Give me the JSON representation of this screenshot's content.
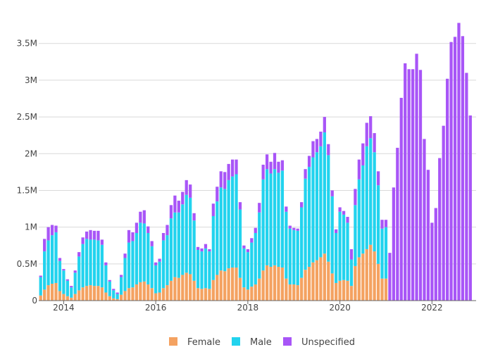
{
  "chart_data": {
    "type": "bar",
    "stacked": true,
    "title": "",
    "xlabel": "",
    "ylabel": "",
    "ylim": [
      0,
      3900000
    ],
    "y_ticks": [
      0,
      500000,
      1000000,
      1500000,
      2000000,
      2500000,
      3000000,
      3500000
    ],
    "y_tick_labels": [
      "0",
      "0.5M",
      "1M",
      "1.5M",
      "2M",
      "2.5M",
      "3M",
      "3.5M"
    ],
    "x_tick_labels": [
      "2014",
      "2016",
      "2018",
      "2020",
      "2022"
    ],
    "x_tick_index": [
      6,
      30,
      54,
      78,
      102
    ],
    "grid": true,
    "legend_position": "bottom-center",
    "series": [
      {
        "name": "Female",
        "color": "#f4a261",
        "values": [
          70000,
          150000,
          210000,
          230000,
          240000,
          130000,
          90000,
          60000,
          40000,
          90000,
          140000,
          180000,
          200000,
          210000,
          200000,
          200000,
          180000,
          110000,
          60000,
          30000,
          20000,
          80000,
          130000,
          170000,
          180000,
          220000,
          250000,
          260000,
          220000,
          170000,
          100000,
          110000,
          170000,
          210000,
          270000,
          320000,
          310000,
          350000,
          380000,
          360000,
          270000,
          170000,
          160000,
          170000,
          160000,
          280000,
          350000,
          410000,
          400000,
          440000,
          450000,
          450000,
          310000,
          180000,
          150000,
          190000,
          220000,
          300000,
          410000,
          480000,
          460000,
          480000,
          460000,
          450000,
          300000,
          220000,
          220000,
          210000,
          310000,
          420000,
          460000,
          520000,
          550000,
          590000,
          640000,
          530000,
          370000,
          240000,
          270000,
          280000,
          270000,
          200000,
          470000,
          590000,
          640000,
          700000,
          760000,
          670000,
          500000,
          300000,
          300000,
          0,
          0,
          0,
          0,
          0,
          0,
          0,
          0,
          0,
          0,
          0,
          0,
          0,
          0,
          0,
          0,
          0,
          0,
          0,
          0,
          0,
          0,
          0
        ]
      },
      {
        "name": "Male",
        "color": "#22d3ee",
        "values": [
          250000,
          520000,
          610000,
          660000,
          690000,
          410000,
          320000,
          210000,
          140000,
          290000,
          460000,
          590000,
          640000,
          620000,
          630000,
          620000,
          580000,
          370000,
          200000,
          110000,
          70000,
          240000,
          450000,
          620000,
          630000,
          700000,
          810000,
          790000,
          700000,
          570000,
          380000,
          420000,
          650000,
          680000,
          850000,
          880000,
          890000,
          960000,
          1060000,
          1040000,
          820000,
          520000,
          510000,
          540000,
          510000,
          870000,
          1000000,
          1130000,
          1120000,
          1200000,
          1240000,
          1270000,
          930000,
          530000,
          510000,
          600000,
          700000,
          900000,
          1240000,
          1310000,
          1270000,
          1310000,
          1280000,
          1320000,
          910000,
          760000,
          740000,
          740000,
          960000,
          1240000,
          1360000,
          1430000,
          1470000,
          1510000,
          1650000,
          1450000,
          1050000,
          680000,
          940000,
          890000,
          790000,
          360000,
          830000,
          1060000,
          1200000,
          1400000,
          1450000,
          1350000,
          1070000,
          680000,
          700000,
          0,
          0,
          0,
          0,
          0,
          0,
          0,
          0,
          0,
          0,
          0,
          0,
          0,
          0,
          0,
          0,
          0,
          0,
          0,
          0,
          0,
          0,
          0
        ]
      },
      {
        "name": "Unspecified",
        "color": "#a855f7",
        "values": [
          20000,
          170000,
          180000,
          140000,
          90000,
          40000,
          20000,
          20000,
          20000,
          30000,
          60000,
          90000,
          100000,
          130000,
          120000,
          130000,
          70000,
          40000,
          20000,
          20000,
          20000,
          30000,
          60000,
          170000,
          120000,
          140000,
          150000,
          180000,
          90000,
          70000,
          40000,
          40000,
          100000,
          140000,
          180000,
          230000,
          160000,
          170000,
          200000,
          180000,
          100000,
          40000,
          40000,
          60000,
          30000,
          170000,
          200000,
          220000,
          230000,
          220000,
          230000,
          200000,
          100000,
          40000,
          40000,
          60000,
          70000,
          130000,
          200000,
          200000,
          160000,
          220000,
          150000,
          140000,
          70000,
          40000,
          30000,
          30000,
          70000,
          130000,
          150000,
          220000,
          180000,
          200000,
          210000,
          150000,
          80000,
          50000,
          60000,
          50000,
          80000,
          140000,
          220000,
          270000,
          300000,
          320000,
          300000,
          260000,
          190000,
          120000,
          100000,
          650000,
          1540000,
          2080000,
          2760000,
          3230000,
          3150000,
          3150000,
          3360000,
          3140000,
          2200000,
          1780000,
          1060000,
          1260000,
          1940000,
          2380000,
          3020000,
          3520000,
          3590000,
          3780000,
          3600000,
          3100000,
          2520000,
          0
        ]
      }
    ]
  }
}
